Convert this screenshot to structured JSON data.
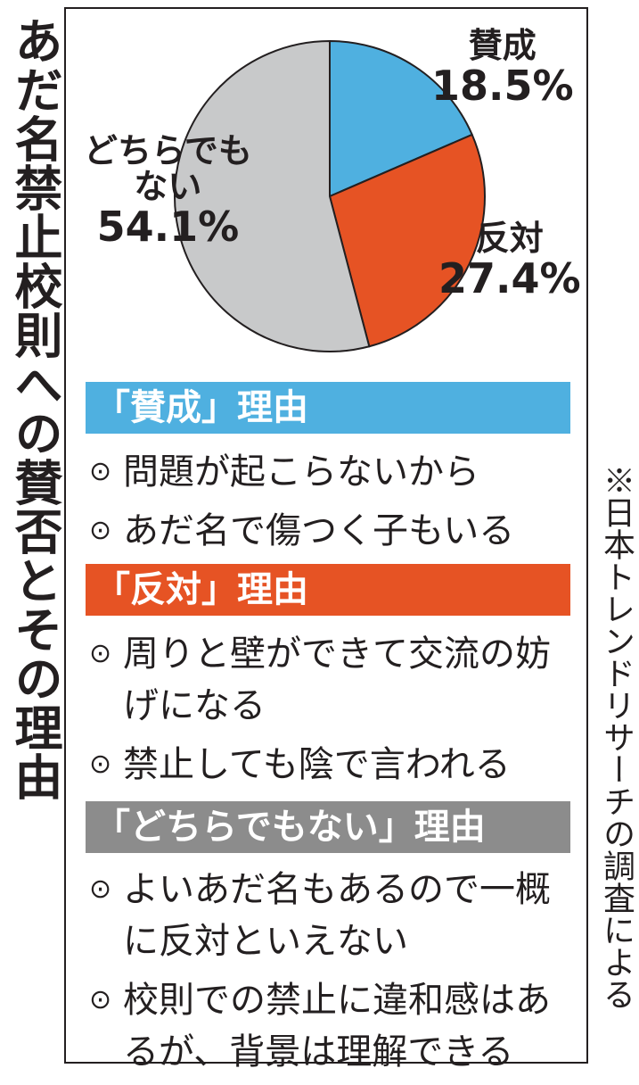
{
  "title": "あだ名禁止校則への賛否とその理由",
  "source": "※日本トレンドリサーチの調査による",
  "colors": {
    "approve": "#4fb0e0",
    "oppose": "#e65324",
    "neither": "#c8c9ca",
    "neither_bar": "#8c8c8c",
    "text": "#231f20"
  },
  "pie_labels": {
    "approve_name": "賛成",
    "approve_value": "18.5%",
    "oppose_name": "反対",
    "oppose_value": "27.4%",
    "neither_name_line1": "どちらでも",
    "neither_name_line2": "ない",
    "neither_value": "54.1%"
  },
  "sections": {
    "approve": {
      "header": "「賛成」理由",
      "reasons": [
        "問題が起こらないから",
        "あだ名で傷つく子もいる"
      ]
    },
    "oppose": {
      "header": "「反対」理由",
      "reasons": [
        "周りと壁ができて交流の妨げになる",
        "禁止しても陰で言われる"
      ]
    },
    "neither": {
      "header": "「どちらでもない」理由",
      "reasons": [
        "よいあだ名もあるので一概に反対といえない",
        "校則での禁止に違和感はあるが、背景は理解できる"
      ]
    }
  },
  "bullet": "⊙",
  "chart_data": {
    "type": "pie",
    "title": "あだ名禁止校則への賛否とその理由",
    "categories": [
      "賛成",
      "反対",
      "どちらでもない"
    ],
    "values": [
      18.5,
      27.4,
      54.1
    ],
    "unit": "%",
    "colors": [
      "#4fb0e0",
      "#e65324",
      "#c8c9ca"
    ],
    "start": "12 o'clock, clockwise"
  }
}
